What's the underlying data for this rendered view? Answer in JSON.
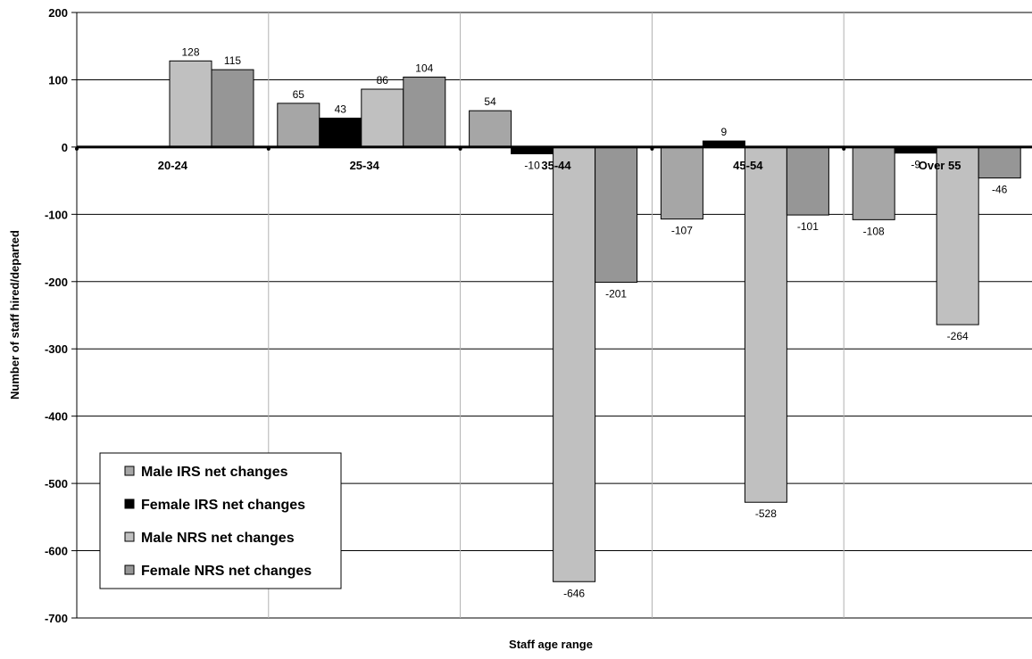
{
  "chart_data": {
    "type": "bar",
    "title": "",
    "xlabel": "Staff age range",
    "ylabel": "Number of staff hired/departed",
    "ylim": [
      -700,
      200
    ],
    "yticks": [
      200,
      100,
      0,
      -100,
      -200,
      -300,
      -400,
      -500,
      -600,
      -700
    ],
    "grid": "horizontal and vertical",
    "legend_position": "bottom-left",
    "categories": [
      "20-24",
      "25-34",
      "35-44",
      "45-54",
      "Over 55"
    ],
    "series": [
      {
        "name": "Male IRS net changes",
        "color": "#a6a6a6",
        "values": [
          null,
          65,
          54,
          -107,
          -108
        ]
      },
      {
        "name": "Female IRS net changes",
        "color": "#000000",
        "values": [
          null,
          43,
          -10,
          9,
          -9
        ]
      },
      {
        "name": "Male NRS net changes",
        "color": "#c0c0c0",
        "values": [
          128,
          86,
          -646,
          -528,
          -264
        ]
      },
      {
        "name": "Female NRS net changes",
        "color": "#969696",
        "values": [
          115,
          104,
          -201,
          -101,
          -46
        ]
      }
    ]
  }
}
